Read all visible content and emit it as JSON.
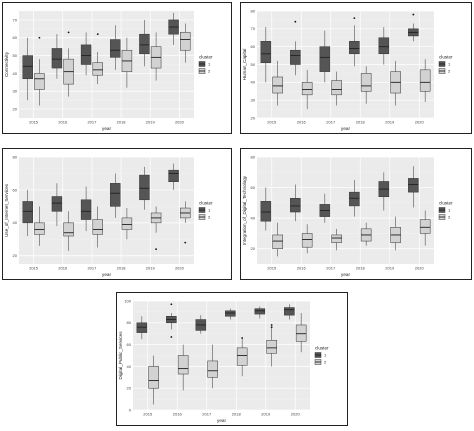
{
  "colors": {
    "cluster_1": "#555555",
    "cluster_2": "#d2d2d2",
    "panel": "#ebebeb"
  },
  "legend": {
    "title": "cluster",
    "labels": [
      "1",
      "2"
    ]
  },
  "chart_data": [
    {
      "type": "box",
      "ylabel": "Connectivity",
      "xlabel": "year",
      "categories": [
        "2015",
        "2016",
        "2017",
        "2018",
        "2019",
        "2020"
      ],
      "ylim": [
        15,
        75
      ],
      "grid": true,
      "legend_position": "right",
      "series": [
        {
          "name": "1",
          "boxes": [
            {
              "min": 25,
              "q1": 37,
              "median": 44,
              "q3": 50,
              "max": 60,
              "outliers": []
            },
            {
              "min": 37,
              "q1": 43,
              "median": 48,
              "q3": 54,
              "max": 62,
              "outliers": []
            },
            {
              "min": 39,
              "q1": 45,
              "median": 50,
              "q3": 56,
              "max": 63,
              "outliers": []
            },
            {
              "min": 42,
              "q1": 49,
              "median": 53,
              "q3": 59,
              "max": 67,
              "outliers": []
            },
            {
              "min": 44,
              "q1": 51,
              "median": 56,
              "q3": 62,
              "max": 70,
              "outliers": []
            },
            {
              "min": 56,
              "q1": 62,
              "median": 66,
              "q3": 70,
              "max": 74,
              "outliers": []
            }
          ]
        },
        {
          "name": "2",
          "boxes": [
            {
              "min": 22,
              "q1": 31,
              "median": 37,
              "q3": 40,
              "max": 48,
              "outliers": [
                60
              ]
            },
            {
              "min": 27,
              "q1": 34,
              "median": 41,
              "q3": 48,
              "max": 54,
              "outliers": [
                63
              ]
            },
            {
              "min": 34,
              "q1": 39,
              "median": 42,
              "q3": 46,
              "max": 52,
              "outliers": [
                62
              ]
            },
            {
              "min": 32,
              "q1": 41,
              "median": 47,
              "q3": 53,
              "max": 60,
              "outliers": []
            },
            {
              "min": 36,
              "q1": 43,
              "median": 49,
              "q3": 55,
              "max": 63,
              "outliers": []
            },
            {
              "min": 46,
              "q1": 53,
              "median": 59,
              "q3": 63,
              "max": 68,
              "outliers": []
            }
          ]
        }
      ]
    },
    {
      "type": "box",
      "ylabel": "Human_Capital",
      "xlabel": "year",
      "categories": [
        "2015",
        "2016",
        "2017",
        "2018",
        "2019",
        "2020"
      ],
      "ylim": [
        20,
        80
      ],
      "grid": true,
      "legend_position": "right",
      "series": [
        {
          "name": "1",
          "boxes": [
            {
              "min": 40,
              "q1": 51,
              "median": 56,
              "q3": 63,
              "max": 71,
              "outliers": []
            },
            {
              "min": 44,
              "q1": 50,
              "median": 55,
              "q3": 58,
              "max": 63,
              "outliers": [
                74
              ]
            },
            {
              "min": 40,
              "q1": 46,
              "median": 54,
              "q3": 60,
              "max": 69,
              "outliers": []
            },
            {
              "min": 49,
              "q1": 56,
              "median": 59,
              "q3": 63,
              "max": 72,
              "outliers": [
                76
              ]
            },
            {
              "min": 50,
              "q1": 56,
              "median": 60,
              "q3": 65,
              "max": 71,
              "outliers": []
            },
            {
              "min": 63,
              "q1": 66,
              "median": 68,
              "q3": 70,
              "max": 73,
              "outliers": [
                78
              ]
            }
          ]
        },
        {
          "name": "2",
          "boxes": [
            {
              "min": 27,
              "q1": 34,
              "median": 38,
              "q3": 43,
              "max": 52,
              "outliers": []
            },
            {
              "min": 25,
              "q1": 33,
              "median": 36,
              "q3": 40,
              "max": 47,
              "outliers": []
            },
            {
              "min": 27,
              "q1": 33,
              "median": 36,
              "q3": 41,
              "max": 46,
              "outliers": []
            },
            {
              "min": 28,
              "q1": 35,
              "median": 38,
              "q3": 45,
              "max": 49,
              "outliers": []
            },
            {
              "min": 27,
              "q1": 34,
              "median": 40,
              "q3": 46,
              "max": 52,
              "outliers": []
            },
            {
              "min": 29,
              "q1": 35,
              "median": 40,
              "q3": 47,
              "max": 53,
              "outliers": []
            }
          ]
        }
      ]
    },
    {
      "type": "box",
      "ylabel": "Use_of_Internet_Services",
      "xlabel": "year",
      "categories": [
        "2015",
        "2016",
        "2017",
        "2018",
        "2019",
        "2020"
      ],
      "ylim": [
        15,
        80
      ],
      "grid": true,
      "legend_position": "right",
      "series": [
        {
          "name": "1",
          "boxes": [
            {
              "min": 32,
              "q1": 40,
              "median": 47,
              "q3": 53,
              "max": 60,
              "outliers": []
            },
            {
              "min": 38,
              "q1": 47,
              "median": 52,
              "q3": 56,
              "max": 64,
              "outliers": []
            },
            {
              "min": 35,
              "q1": 42,
              "median": 47,
              "q3": 54,
              "max": 62,
              "outliers": []
            },
            {
              "min": 43,
              "q1": 50,
              "median": 58,
              "q3": 64,
              "max": 70,
              "outliers": []
            },
            {
              "min": 48,
              "q1": 54,
              "median": 61,
              "q3": 69,
              "max": 74,
              "outliers": []
            },
            {
              "min": 60,
              "q1": 65,
              "median": 70,
              "q3": 72,
              "max": 76,
              "outliers": []
            }
          ]
        },
        {
          "name": "2",
          "boxes": [
            {
              "min": 26,
              "q1": 33,
              "median": 36,
              "q3": 40,
              "max": 50,
              "outliers": []
            },
            {
              "min": 23,
              "q1": 32,
              "median": 34,
              "q3": 40,
              "max": 47,
              "outliers": []
            },
            {
              "min": 25,
              "q1": 33,
              "median": 36,
              "q3": 42,
              "max": 50,
              "outliers": []
            },
            {
              "min": 30,
              "q1": 36,
              "median": 39,
              "q3": 43,
              "max": 49,
              "outliers": []
            },
            {
              "min": 34,
              "q1": 40,
              "median": 43,
              "q3": 46,
              "max": 50,
              "outliers": [
                24
              ]
            },
            {
              "min": 40,
              "q1": 43,
              "median": 46,
              "q3": 49,
              "max": 53,
              "outliers": [
                28
              ]
            }
          ]
        }
      ]
    },
    {
      "type": "box",
      "ylabel": "Integration_of_Digital_Technology",
      "xlabel": "year",
      "categories": [
        "2015",
        "2016",
        "2017",
        "2018",
        "2019",
        "2020"
      ],
      "ylim": [
        10,
        80
      ],
      "grid": true,
      "legend_position": "right",
      "series": [
        {
          "name": "1",
          "boxes": [
            {
              "min": 32,
              "q1": 38,
              "median": 44,
              "q3": 51,
              "max": 60,
              "outliers": []
            },
            {
              "min": 38,
              "q1": 44,
              "median": 48,
              "q3": 53,
              "max": 62,
              "outliers": []
            },
            {
              "min": 37,
              "q1": 41,
              "median": 45,
              "q3": 49,
              "max": 56,
              "outliers": []
            },
            {
              "min": 41,
              "q1": 48,
              "median": 53,
              "q3": 57,
              "max": 65,
              "outliers": []
            },
            {
              "min": 45,
              "q1": 54,
              "median": 59,
              "q3": 64,
              "max": 70,
              "outliers": []
            },
            {
              "min": 47,
              "q1": 57,
              "median": 62,
              "q3": 66,
              "max": 74,
              "outliers": []
            }
          ]
        },
        {
          "name": "2",
          "boxes": [
            {
              "min": 15,
              "q1": 20,
              "median": 25,
              "q3": 29,
              "max": 37,
              "outliers": []
            },
            {
              "min": 17,
              "q1": 21,
              "median": 26,
              "q3": 30,
              "max": 36,
              "outliers": []
            },
            {
              "min": 19,
              "q1": 24,
              "median": 27,
              "q3": 29,
              "max": 33,
              "outliers": []
            },
            {
              "min": 22,
              "q1": 25,
              "median": 29,
              "q3": 33,
              "max": 37,
              "outliers": []
            },
            {
              "min": 19,
              "q1": 24,
              "median": 29,
              "q3": 34,
              "max": 41,
              "outliers": []
            },
            {
              "min": 22,
              "q1": 30,
              "median": 34,
              "q3": 39,
              "max": 45,
              "outliers": []
            }
          ]
        }
      ]
    },
    {
      "type": "box",
      "ylabel": "Digital_Public_Services",
      "xlabel": "year",
      "categories": [
        "2015",
        "2016",
        "2017",
        "2018",
        "2019",
        "2020"
      ],
      "ylim": [
        0,
        100
      ],
      "grid": true,
      "legend_position": "right",
      "series": [
        {
          "name": "1",
          "boxes": [
            {
              "min": 65,
              "q1": 71,
              "median": 76,
              "q3": 80,
              "max": 86,
              "outliers": []
            },
            {
              "min": 74,
              "q1": 80,
              "median": 83,
              "q3": 86,
              "max": 89,
              "outliers": [
                97,
                67
              ]
            },
            {
              "min": 70,
              "q1": 73,
              "median": 78,
              "q3": 83,
              "max": 87,
              "outliers": []
            },
            {
              "min": 83,
              "q1": 86,
              "median": 89,
              "q3": 91,
              "max": 93,
              "outliers": []
            },
            {
              "min": 84,
              "q1": 88,
              "median": 91,
              "q3": 93,
              "max": 95,
              "outliers": []
            },
            {
              "min": 83,
              "q1": 87,
              "median": 92,
              "q3": 94,
              "max": 97,
              "outliers": []
            }
          ]
        },
        {
          "name": "2",
          "boxes": [
            {
              "min": 5,
              "q1": 20,
              "median": 27,
              "q3": 40,
              "max": 50,
              "outliers": []
            },
            {
              "min": 18,
              "q1": 33,
              "median": 38,
              "q3": 50,
              "max": 60,
              "outliers": []
            },
            {
              "min": 20,
              "q1": 30,
              "median": 36,
              "q3": 45,
              "max": 60,
              "outliers": []
            },
            {
              "min": 31,
              "q1": 41,
              "median": 50,
              "q3": 57,
              "max": 65,
              "outliers": [
                66
              ]
            },
            {
              "min": 40,
              "q1": 52,
              "median": 57,
              "q3": 64,
              "max": 76,
              "outliers": [
                78,
                76
              ]
            },
            {
              "min": 53,
              "q1": 63,
              "median": 70,
              "q3": 78,
              "max": 89,
              "outliers": []
            }
          ]
        }
      ]
    }
  ]
}
